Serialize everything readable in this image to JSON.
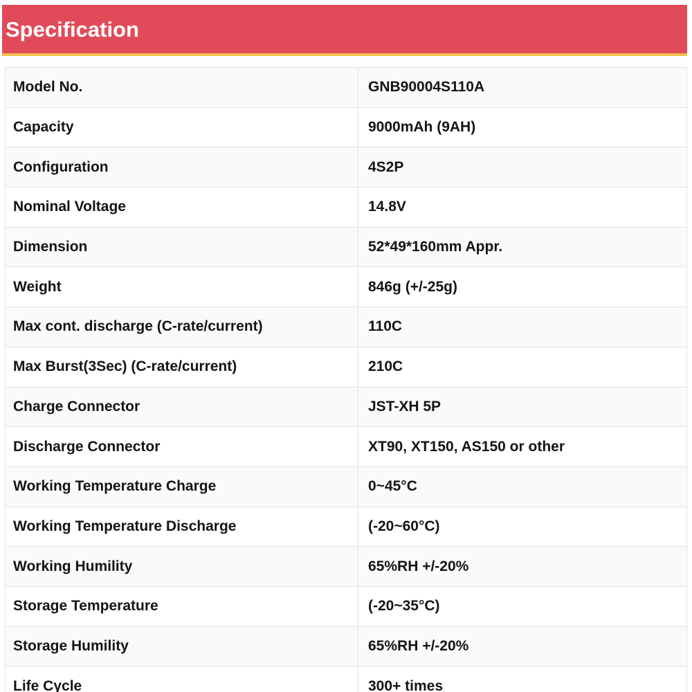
{
  "header": {
    "title": "Specification"
  },
  "colors": {
    "header_bg": "#e14b59",
    "header_underline": "#f2c24d",
    "title_text": "#ffffff",
    "row_alt_bg": "#fafafa",
    "border": "#e2e2e2",
    "text": "#141414"
  },
  "table": {
    "rows": [
      {
        "label": "Model No.",
        "value": "GNB90004S110A"
      },
      {
        "label": "Capacity",
        "value": "9000mAh (9AH)"
      },
      {
        "label": "Configuration",
        "value": "4S2P"
      },
      {
        "label": "Nominal Voltage",
        "value": "14.8V"
      },
      {
        "label": "Dimension",
        "value": "52*49*160mm Appr."
      },
      {
        "label": "Weight",
        "value": "846g (+/-25g)"
      },
      {
        "label": "Max cont. discharge (C-rate/current)",
        "value": "110C"
      },
      {
        "label": "Max Burst(3Sec) (C-rate/current)",
        "value": "210C"
      },
      {
        "label": "Charge Connector",
        "value": "JST-XH 5P"
      },
      {
        "label": "Discharge Connector",
        "value": "XT90, XT150, AS150 or other"
      },
      {
        "label": "Working Temperature Charge",
        "value": "0~45°C"
      },
      {
        "label": "Working Temperature Discharge",
        "value": "(-20~60°C)"
      },
      {
        "label": "Working Humility",
        "value": "65%RH +/-20%"
      },
      {
        "label": "Storage Temperature",
        "value": "(-20~35°C)"
      },
      {
        "label": "Storage Humility",
        "value": "65%RH +/-20%"
      },
      {
        "label": "Life Cycle",
        "value": "300+ times"
      }
    ]
  }
}
